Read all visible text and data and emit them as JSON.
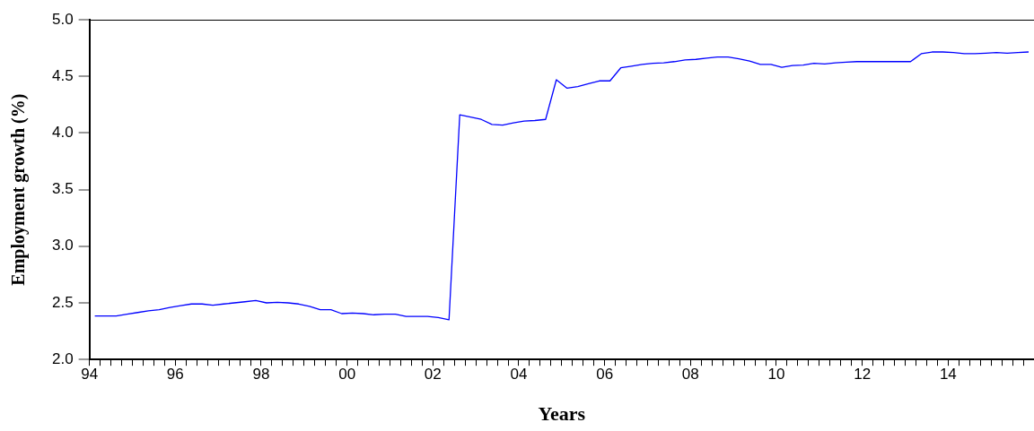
{
  "chart_data": {
    "type": "line",
    "xlabel": "Years",
    "ylabel": "Employment growth (%)",
    "x": [
      1994.125,
      1994.375,
      1994.625,
      1994.875,
      1995.125,
      1995.375,
      1995.625,
      1995.875,
      1996.125,
      1996.375,
      1996.625,
      1996.875,
      1997.125,
      1997.375,
      1997.625,
      1997.875,
      1998.125,
      1998.375,
      1998.625,
      1998.875,
      1999.125,
      1999.375,
      1999.625,
      1999.875,
      2000.125,
      2000.375,
      2000.625,
      2000.875,
      2001.125,
      2001.375,
      2001.625,
      2001.875,
      2002.125,
      2002.375,
      2002.625,
      2002.875,
      2003.125,
      2003.375,
      2003.625,
      2003.875,
      2004.125,
      2004.375,
      2004.625,
      2004.875,
      2005.125,
      2005.375,
      2005.625,
      2005.875,
      2006.125,
      2006.375,
      2006.625,
      2006.875,
      2007.125,
      2007.375,
      2007.625,
      2007.875,
      2008.125,
      2008.375,
      2008.625,
      2008.875,
      2009.125,
      2009.375,
      2009.625,
      2009.875,
      2010.125,
      2010.375,
      2010.625,
      2010.875,
      2011.125,
      2011.375,
      2011.625,
      2011.875,
      2012.125,
      2012.375,
      2012.625,
      2012.875,
      2013.125,
      2013.375,
      2013.625,
      2013.875,
      2014.125,
      2014.375,
      2014.625,
      2014.875,
      2015.125,
      2015.375,
      2015.625,
      2015.875
    ],
    "series": [
      {
        "color": "#0000ff",
        "values": [
          2.385,
          2.385,
          2.385,
          2.4,
          2.415,
          2.43,
          2.44,
          2.46,
          2.475,
          2.49,
          2.49,
          2.48,
          2.49,
          2.5,
          2.51,
          2.52,
          2.5,
          2.505,
          2.5,
          2.49,
          2.47,
          2.44,
          2.44,
          2.405,
          2.41,
          2.405,
          2.395,
          2.4,
          2.4,
          2.38,
          2.38,
          2.38,
          2.37,
          2.35,
          4.16,
          4.14,
          4.12,
          4.075,
          4.07,
          4.09,
          4.105,
          4.11,
          4.12,
          4.47,
          4.395,
          4.41,
          4.435,
          4.46,
          4.46,
          4.575,
          4.59,
          4.605,
          4.615,
          4.62,
          4.63,
          4.645,
          4.65,
          4.66,
          4.67,
          4.67,
          4.655,
          4.635,
          4.605,
          4.605,
          4.58,
          4.595,
          4.6,
          4.615,
          4.61,
          4.62,
          4.625,
          4.63,
          4.63,
          4.63,
          4.63,
          4.63,
          4.63,
          4.7,
          4.715,
          4.715,
          4.71,
          4.7,
          4.7,
          4.705,
          4.71,
          4.705,
          4.71,
          4.715
        ]
      }
    ],
    "xlim": [
      1994,
      2016
    ],
    "xticks": [
      {
        "value": 1994,
        "label": "94"
      },
      {
        "value": 1994.25,
        "label": null
      },
      {
        "value": 1994.5,
        "label": null
      },
      {
        "value": 1994.75,
        "label": null
      },
      {
        "value": 1995,
        "label": null
      },
      {
        "value": 1995.25,
        "label": null
      },
      {
        "value": 1995.5,
        "label": null
      },
      {
        "value": 1995.75,
        "label": null
      },
      {
        "value": 1996,
        "label": "96"
      },
      {
        "value": 1996.25,
        "label": null
      },
      {
        "value": 1996.5,
        "label": null
      },
      {
        "value": 1996.75,
        "label": null
      },
      {
        "value": 1997,
        "label": null
      },
      {
        "value": 1997.25,
        "label": null
      },
      {
        "value": 1997.5,
        "label": null
      },
      {
        "value": 1997.75,
        "label": null
      },
      {
        "value": 1998,
        "label": "98"
      },
      {
        "value": 1998.25,
        "label": null
      },
      {
        "value": 1998.5,
        "label": null
      },
      {
        "value": 1998.75,
        "label": null
      },
      {
        "value": 1999,
        "label": null
      },
      {
        "value": 1999.25,
        "label": null
      },
      {
        "value": 1999.5,
        "label": null
      },
      {
        "value": 1999.75,
        "label": null
      },
      {
        "value": 2000,
        "label": "00"
      },
      {
        "value": 2000.25,
        "label": null
      },
      {
        "value": 2000.5,
        "label": null
      },
      {
        "value": 2000.75,
        "label": null
      },
      {
        "value": 2001,
        "label": null
      },
      {
        "value": 2001.25,
        "label": null
      },
      {
        "value": 2001.5,
        "label": null
      },
      {
        "value": 2001.75,
        "label": null
      },
      {
        "value": 2002,
        "label": "02"
      },
      {
        "value": 2002.25,
        "label": null
      },
      {
        "value": 2002.5,
        "label": null
      },
      {
        "value": 2002.75,
        "label": null
      },
      {
        "value": 2003,
        "label": null
      },
      {
        "value": 2003.25,
        "label": null
      },
      {
        "value": 2003.5,
        "label": null
      },
      {
        "value": 2003.75,
        "label": null
      },
      {
        "value": 2004,
        "label": "04"
      },
      {
        "value": 2004.25,
        "label": null
      },
      {
        "value": 2004.5,
        "label": null
      },
      {
        "value": 2004.75,
        "label": null
      },
      {
        "value": 2005,
        "label": null
      },
      {
        "value": 2005.25,
        "label": null
      },
      {
        "value": 2005.5,
        "label": null
      },
      {
        "value": 2005.75,
        "label": null
      },
      {
        "value": 2006,
        "label": "06"
      },
      {
        "value": 2006.25,
        "label": null
      },
      {
        "value": 2006.5,
        "label": null
      },
      {
        "value": 2006.75,
        "label": null
      },
      {
        "value": 2007,
        "label": null
      },
      {
        "value": 2007.25,
        "label": null
      },
      {
        "value": 2007.5,
        "label": null
      },
      {
        "value": 2007.75,
        "label": null
      },
      {
        "value": 2008,
        "label": "08"
      },
      {
        "value": 2008.25,
        "label": null
      },
      {
        "value": 2008.5,
        "label": null
      },
      {
        "value": 2008.75,
        "label": null
      },
      {
        "value": 2009,
        "label": null
      },
      {
        "value": 2009.25,
        "label": null
      },
      {
        "value": 2009.5,
        "label": null
      },
      {
        "value": 2009.75,
        "label": null
      },
      {
        "value": 2010,
        "label": "10"
      },
      {
        "value": 2010.25,
        "label": null
      },
      {
        "value": 2010.5,
        "label": null
      },
      {
        "value": 2010.75,
        "label": null
      },
      {
        "value": 2011,
        "label": null
      },
      {
        "value": 2011.25,
        "label": null
      },
      {
        "value": 2011.5,
        "label": null
      },
      {
        "value": 2011.75,
        "label": null
      },
      {
        "value": 2012,
        "label": "12"
      },
      {
        "value": 2012.25,
        "label": null
      },
      {
        "value": 2012.5,
        "label": null
      },
      {
        "value": 2012.75,
        "label": null
      },
      {
        "value": 2013,
        "label": null
      },
      {
        "value": 2013.25,
        "label": null
      },
      {
        "value": 2013.5,
        "label": null
      },
      {
        "value": 2013.75,
        "label": null
      },
      {
        "value": 2014,
        "label": "14"
      },
      {
        "value": 2014.25,
        "label": null
      },
      {
        "value": 2014.5,
        "label": null
      },
      {
        "value": 2014.75,
        "label": null
      },
      {
        "value": 2015,
        "label": null
      },
      {
        "value": 2015.25,
        "label": null
      },
      {
        "value": 2015.5,
        "label": null
      },
      {
        "value": 2015.75,
        "label": null
      },
      {
        "value": 2016,
        "label": null
      }
    ],
    "ylim": [
      2,
      5
    ],
    "yticks": [
      {
        "value": 2,
        "label": "2.0"
      },
      {
        "value": 2.5,
        "label": "2.5"
      },
      {
        "value": 3,
        "label": "3.0"
      },
      {
        "value": 3.5,
        "label": "3.5"
      },
      {
        "value": 4,
        "label": "4.0"
      },
      {
        "value": 4.5,
        "label": "4.5"
      },
      {
        "value": 5,
        "label": "5.0"
      }
    ],
    "grid": false,
    "legend": false,
    "marker": "none",
    "line_style": "solid"
  }
}
